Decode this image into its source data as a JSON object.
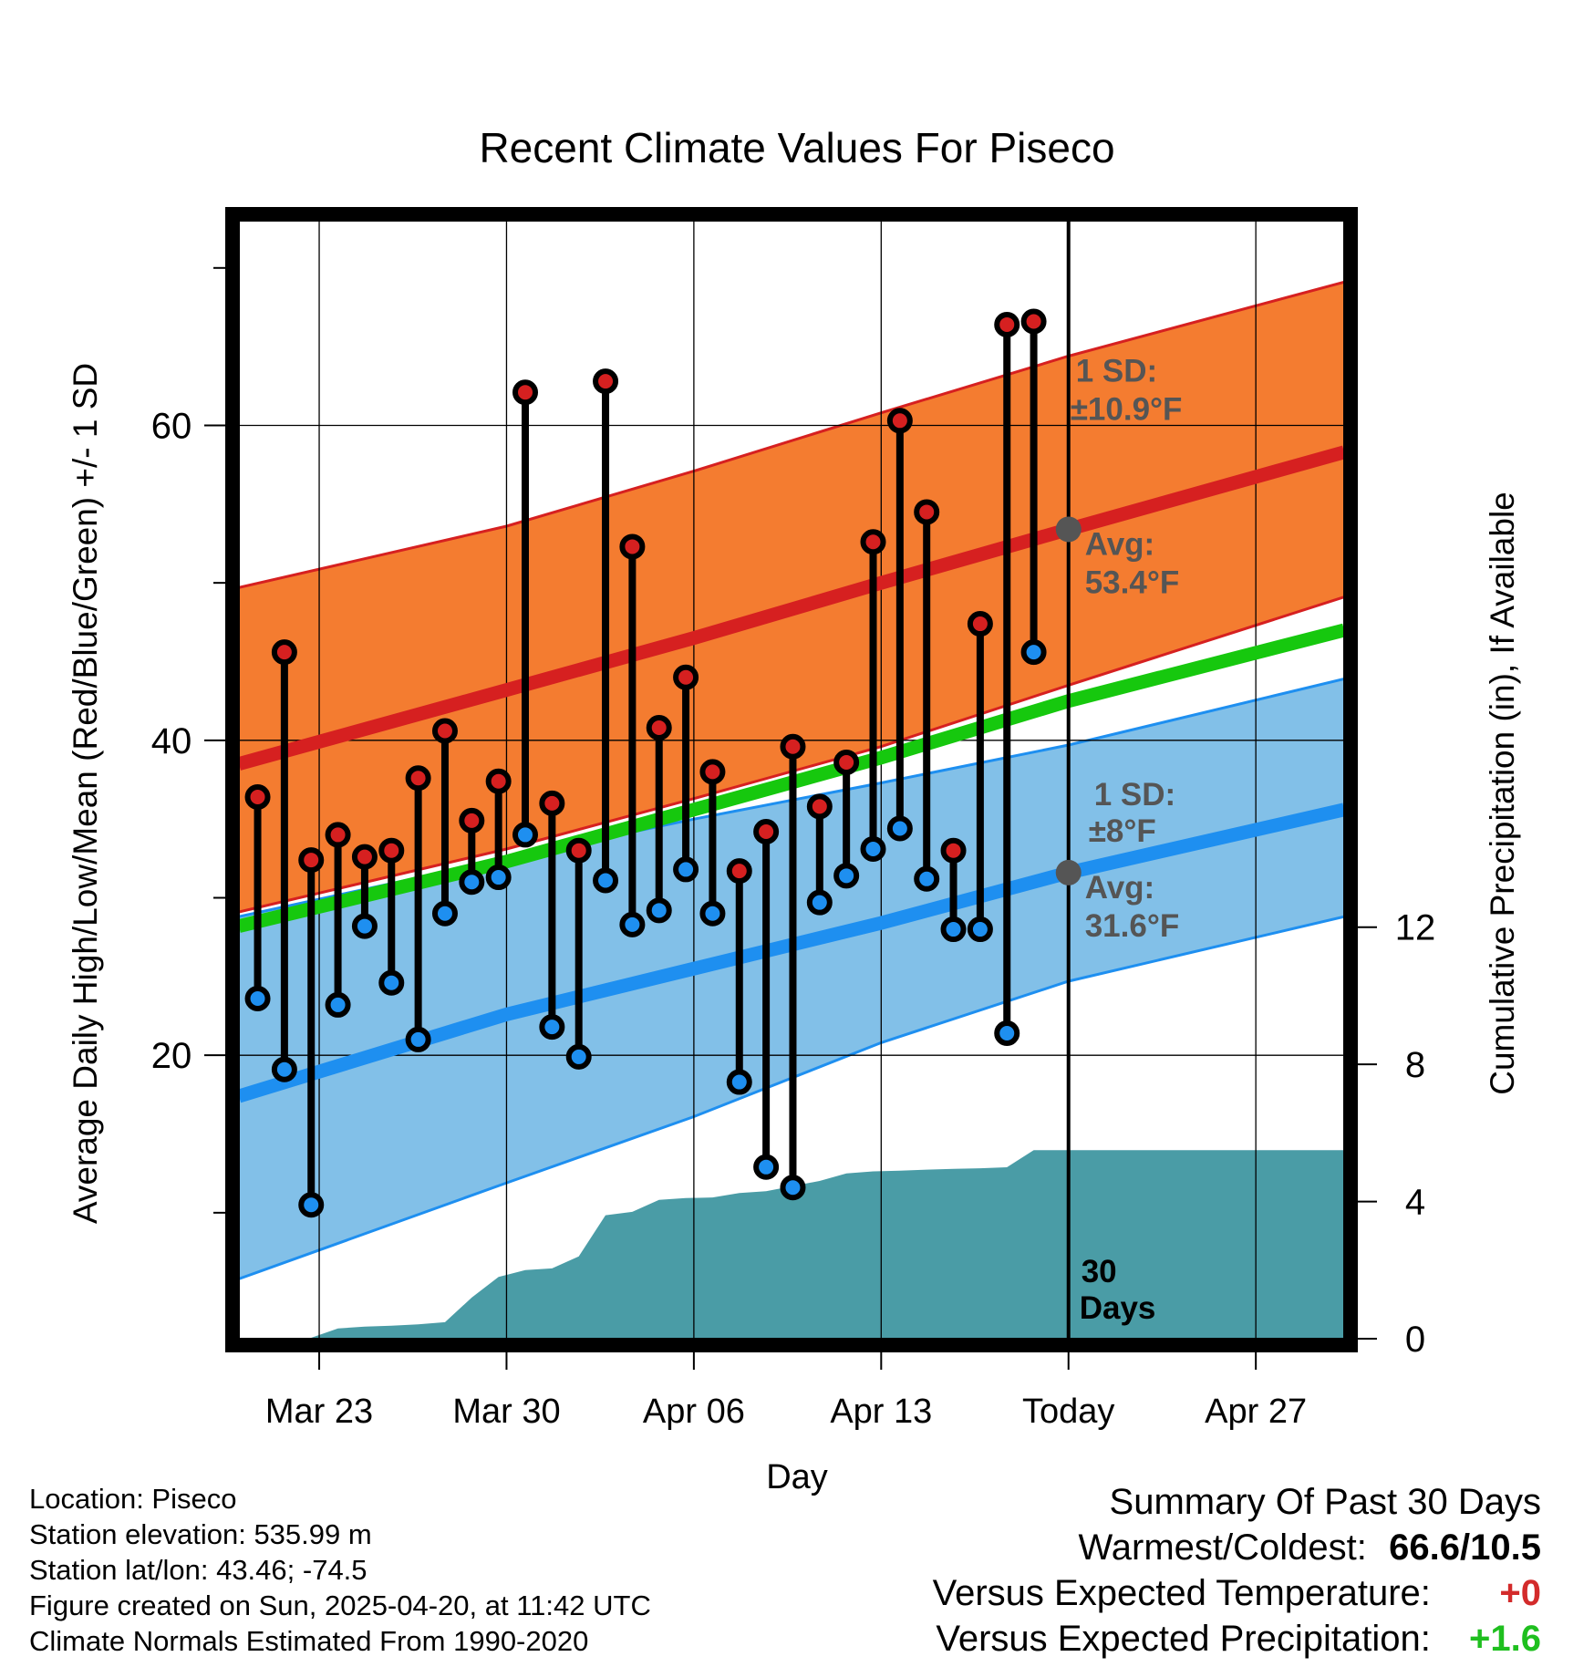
{
  "chart_data": {
    "type": "line",
    "title": "Recent Climate Values For Piseco",
    "xlabel": "Day",
    "ylabel_left": "Average Daily High/Low/Mean (Red/Blue/Green) +/- 1 SD",
    "ylabel_right": "Cumulative Precipitation (in), If Available",
    "x_ticks": [
      "Mar 23",
      "Mar 30",
      "Apr 06",
      "Apr 13",
      "Today",
      "Apr 27"
    ],
    "x_tick_days": [
      3,
      10,
      17,
      24,
      31,
      38
    ],
    "x_range_days": [
      0,
      41.3
    ],
    "ylim_left": [
      2,
      73
    ],
    "ylim_right": [
      0,
      32.6
    ],
    "y_ticks_left": [
      20,
      40,
      60
    ],
    "y_ticks_right": [
      0,
      4,
      8,
      12
    ],
    "today_day": 31,
    "today_label": "30 Days",
    "normals": {
      "high_mean": [
        [
          0,
          38.5
        ],
        [
          10,
          43.2
        ],
        [
          17,
          46.5
        ],
        [
          24,
          50.0
        ],
        [
          31,
          53.4
        ],
        [
          41.3,
          58.3
        ]
      ],
      "high_upper": [
        [
          0,
          49.7
        ],
        [
          10,
          53.6
        ],
        [
          17,
          57.1
        ],
        [
          24,
          60.8
        ],
        [
          31,
          64.4
        ],
        [
          41.3,
          69.1
        ]
      ],
      "high_lower": [
        [
          0,
          29.1
        ],
        [
          10,
          33.1
        ],
        [
          17,
          36.3
        ],
        [
          24,
          39.6
        ],
        [
          31,
          43.5
        ],
        [
          41.3,
          49.1
        ]
      ],
      "avg_mean": [
        [
          0,
          28.2
        ],
        [
          10,
          32.3
        ],
        [
          17,
          35.6
        ],
        [
          24,
          38.9
        ],
        [
          31,
          42.5
        ],
        [
          41.3,
          47.0
        ]
      ],
      "low_mean": [
        [
          0,
          17.4
        ],
        [
          10,
          22.6
        ],
        [
          17,
          25.5
        ],
        [
          24,
          28.4
        ],
        [
          31,
          31.6
        ],
        [
          41.3,
          35.6
        ]
      ],
      "low_upper": [
        [
          0,
          28.8
        ],
        [
          10,
          32.5
        ],
        [
          17,
          35.0
        ],
        [
          24,
          37.3
        ],
        [
          31,
          39.7
        ],
        [
          41.3,
          43.9
        ]
      ],
      "low_lower": [
        [
          0,
          5.8
        ],
        [
          10,
          11.9
        ],
        [
          17,
          16.1
        ],
        [
          24,
          20.8
        ],
        [
          31,
          24.7
        ],
        [
          41.3,
          28.8
        ]
      ]
    },
    "annotations": [
      {
        "text1": "1 SD:",
        "text2": "±10.9°F",
        "anchor_day": 31,
        "anchor_y": 64.4
      },
      {
        "text1": "Avg:",
        "text2": "53.4°F",
        "marker_day": 31,
        "marker_y": 53.4
      },
      {
        "text1": "1 SD:",
        "text2": "±8°F",
        "anchor_day": 31,
        "anchor_y": 39.7
      },
      {
        "text1": "Avg:",
        "text2": "31.6°F",
        "marker_day": 31,
        "marker_y": 31.6
      }
    ],
    "daily": [
      {
        "day": 0.7,
        "high": 36.4,
        "low": 23.6
      },
      {
        "day": 1.7,
        "high": 45.6,
        "low": 19.1
      },
      {
        "day": 2.7,
        "high": 32.4,
        "low": 10.5
      },
      {
        "day": 3.7,
        "high": 34.0,
        "low": 23.2
      },
      {
        "day": 4.7,
        "high": 32.6,
        "low": 28.2
      },
      {
        "day": 5.7,
        "high": 33.0,
        "low": 24.6
      },
      {
        "day": 6.7,
        "high": 37.6,
        "low": 21.0
      },
      {
        "day": 7.7,
        "high": 40.6,
        "low": 29.0
      },
      {
        "day": 8.7,
        "high": 34.9,
        "low": 31.0
      },
      {
        "day": 9.7,
        "high": 37.4,
        "low": 31.3
      },
      {
        "day": 10.7,
        "high": 62.1,
        "low": 34.0
      },
      {
        "day": 11.7,
        "high": 36.0,
        "low": 21.8
      },
      {
        "day": 12.7,
        "high": 33.0,
        "low": 19.9
      },
      {
        "day": 13.7,
        "high": 62.8,
        "low": 31.1
      },
      {
        "day": 14.7,
        "high": 52.3,
        "low": 28.3
      },
      {
        "day": 15.7,
        "high": 40.8,
        "low": 29.2
      },
      {
        "day": 16.7,
        "high": 44.0,
        "low": 31.8
      },
      {
        "day": 17.7,
        "high": 38.0,
        "low": 29.0
      },
      {
        "day": 18.7,
        "high": 31.7,
        "low": 18.3
      },
      {
        "day": 19.7,
        "high": 34.2,
        "low": 12.9
      },
      {
        "day": 20.7,
        "high": 39.6,
        "low": 11.6
      },
      {
        "day": 21.7,
        "high": 35.8,
        "low": 29.7
      },
      {
        "day": 22.7,
        "high": 38.6,
        "low": 31.4
      },
      {
        "day": 23.7,
        "high": 52.6,
        "low": 33.1
      },
      {
        "day": 24.7,
        "high": 60.3,
        "low": 34.4
      },
      {
        "day": 25.7,
        "high": 54.5,
        "low": 31.2
      },
      {
        "day": 26.7,
        "high": 33.0,
        "low": 28.0
      },
      {
        "day": 27.7,
        "high": 47.4,
        "low": 28.0
      },
      {
        "day": 28.7,
        "high": 66.4,
        "low": 21.4
      },
      {
        "day": 29.7,
        "high": 66.6,
        "low": 45.6
      }
    ],
    "precip_cumulative": [
      [
        2.6,
        0
      ],
      [
        3.7,
        0.3
      ],
      [
        4.7,
        0.35
      ],
      [
        5.7,
        0.38
      ],
      [
        6.7,
        0.42
      ],
      [
        7.7,
        0.48
      ],
      [
        8.7,
        1.2
      ],
      [
        9.7,
        1.8
      ],
      [
        10.7,
        2.0
      ],
      [
        11.7,
        2.05
      ],
      [
        12.7,
        2.4
      ],
      [
        13.7,
        3.6
      ],
      [
        14.7,
        3.7
      ],
      [
        15.7,
        4.05
      ],
      [
        16.7,
        4.1
      ],
      [
        17.7,
        4.12
      ],
      [
        18.7,
        4.25
      ],
      [
        19.7,
        4.3
      ],
      [
        20.7,
        4.45
      ],
      [
        21.7,
        4.6
      ],
      [
        22.7,
        4.82
      ],
      [
        23.7,
        4.88
      ],
      [
        24.7,
        4.9
      ],
      [
        25.7,
        4.93
      ],
      [
        26.7,
        4.95
      ],
      [
        27.7,
        4.97
      ],
      [
        28.7,
        5.0
      ],
      [
        29.7,
        5.5
      ],
      [
        30.7,
        5.5
      ],
      [
        41.3,
        5.5
      ]
    ],
    "colors": {
      "high_band": "#f47c30",
      "high_line": "#d62020",
      "low_band": "#82c0e8",
      "low_line": "#1e8ff0",
      "avg_line": "#16c80e",
      "precip": "#4a9ca6",
      "high_dot": "#d62020",
      "low_dot": "#1e8ff0",
      "annotation": "#555555"
    }
  },
  "footer": {
    "location": "Location: Piseco",
    "elevation": "Station elevation: 535.99 m",
    "latlon": "Station lat/lon: 43.46; -74.5",
    "created": "Figure created on Sun, 2025-04-20, at 11:42 UTC",
    "normals": "Climate Normals Estimated From 1990-2020"
  },
  "summary": {
    "heading": "Summary Of Past 30 Days",
    "warm_cold_label": "Warmest/Coldest:",
    "warm_cold_value": "66.6/10.5",
    "temp_label": "Versus Expected Temperature:",
    "temp_value": "+0",
    "precip_label": "Versus Expected Precipitation:",
    "precip_value": "+1.6"
  }
}
